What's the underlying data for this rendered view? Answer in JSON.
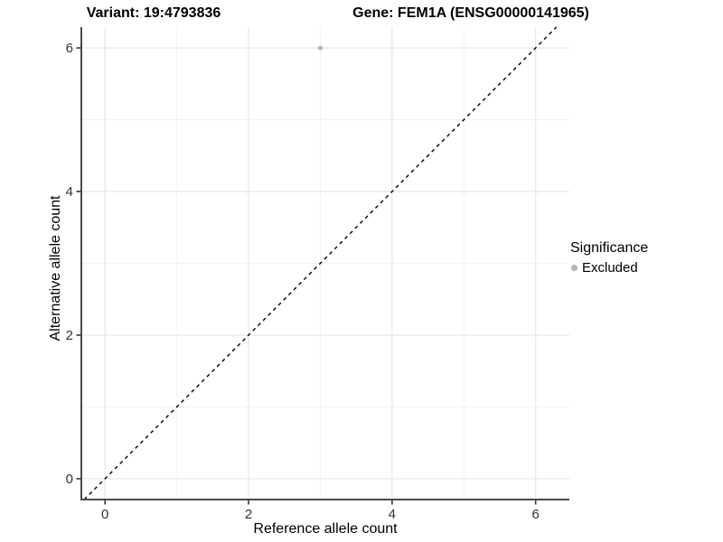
{
  "titles": {
    "variant": "Variant: 19:4793836",
    "gene": "Gene: FEM1A (ENSG00000141965)"
  },
  "axes": {
    "x_label": "Reference allele count",
    "y_label": "Alternative allele count"
  },
  "legend": {
    "title": "Significance",
    "items": [
      {
        "label": "Excluded",
        "color": "#b5b5b5"
      }
    ]
  },
  "chart_data": {
    "type": "scatter",
    "title": "Variant: 19:4793836 | Gene: FEM1A (ENSG00000141965)",
    "xlabel": "Reference allele count",
    "ylabel": "Alternative allele count",
    "xlim": [
      -0.33,
      6.47
    ],
    "ylim": [
      -0.29,
      6.29
    ],
    "x_major_ticks": [
      0,
      2,
      4,
      6
    ],
    "y_major_ticks": [
      0,
      2,
      4,
      6
    ],
    "x_minor_ticks": [
      1,
      3,
      5
    ],
    "y_minor_ticks": [
      1,
      3,
      5
    ],
    "grid": "major+minor",
    "legend_position": "right",
    "series": [
      {
        "name": "Excluded",
        "color": "#b5b5b5",
        "points": [
          {
            "x": 3,
            "y": 6
          }
        ]
      }
    ],
    "reference_line": {
      "kind": "identity",
      "slope": 1,
      "intercept": 0,
      "style": "dashed",
      "color": "#000000"
    }
  },
  "style_colors": {
    "background": "#ffffff",
    "grid_major": "#e6e6e6",
    "grid_minor": "#f2f2f2",
    "axis_line": "#4a4a4a",
    "tick": "#333333",
    "tick_label": "#333333",
    "point": "#b5b5b5"
  }
}
